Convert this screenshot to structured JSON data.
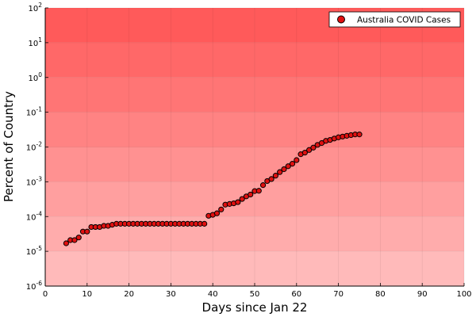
{
  "chart_data": {
    "type": "scatter",
    "xlabel": "Days since Jan 22",
    "ylabel": "Percent of Country",
    "xlim": [
      0,
      100
    ],
    "ylim": [
      1e-06,
      100
    ],
    "yscale": "log",
    "x_ticks": [
      "0",
      "10",
      "20",
      "30",
      "40",
      "50",
      "60",
      "70",
      "80",
      "90",
      "100"
    ],
    "y_ticks": [
      "10-6",
      "10-5",
      "10-4",
      "10-3",
      "10-2",
      "10-1",
      "100",
      "101",
      "102"
    ],
    "grid": true,
    "legend_position": "top-right",
    "background": "red gradient bands, darker toward top",
    "marker_color": "#e01010",
    "series": [
      {
        "name": "Australia COVID Cases",
        "x": [
          5,
          6,
          7,
          8,
          9,
          10,
          11,
          12,
          13,
          14,
          15,
          16,
          17,
          18,
          19,
          20,
          21,
          22,
          23,
          24,
          25,
          26,
          27,
          28,
          29,
          30,
          31,
          32,
          33,
          34,
          35,
          36,
          37,
          38,
          39,
          40,
          41,
          42,
          43,
          44,
          45,
          46,
          47,
          48,
          49,
          50,
          51,
          52,
          53,
          54,
          55,
          56,
          57,
          58,
          59,
          60,
          61,
          62,
          63,
          64,
          65,
          66,
          67,
          68,
          69,
          70,
          71,
          72,
          73,
          74,
          75
        ],
        "y": [
          1.7e-05,
          2.1e-05,
          2.1e-05,
          2.5e-05,
          3.7e-05,
          3.7e-05,
          5e-05,
          5e-05,
          5e-05,
          5.4e-05,
          5.4e-05,
          5.8e-05,
          6.2e-05,
          6.2e-05,
          6.2e-05,
          6.2e-05,
          6.2e-05,
          6.2e-05,
          6.2e-05,
          6.2e-05,
          6.2e-05,
          6.2e-05,
          6.2e-05,
          6.2e-05,
          6.2e-05,
          6.2e-05,
          6.2e-05,
          6.2e-05,
          6.2e-05,
          6.2e-05,
          6.2e-05,
          6.2e-05,
          6.2e-05,
          6.2e-05,
          0.000105,
          0.000112,
          0.000124,
          0.00016,
          0.00022,
          0.00023,
          0.00024,
          0.00026,
          0.00032,
          0.00038,
          0.00043,
          0.00054,
          0.00055,
          0.0008,
          0.00105,
          0.0012,
          0.0015,
          0.0019,
          0.0023,
          0.0028,
          0.0033,
          0.0042,
          0.0062,
          0.0069,
          0.0082,
          0.0096,
          0.0115,
          0.013,
          0.015,
          0.016,
          0.0175,
          0.019,
          0.02,
          0.021,
          0.022,
          0.023,
          0.023
        ]
      }
    ]
  }
}
